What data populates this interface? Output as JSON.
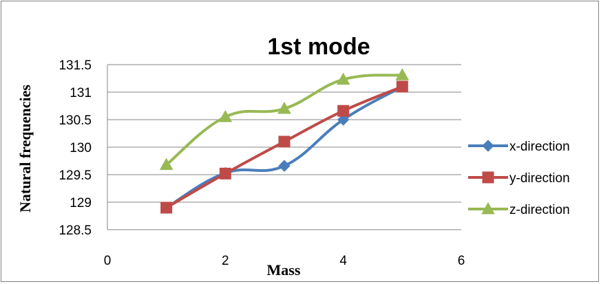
{
  "chart_data": {
    "type": "scatter",
    "title": "1st mode",
    "xlabel": "Mass",
    "ylabel": "Natural frequencies",
    "xlim": [
      0,
      6
    ],
    "ylim": [
      128.5,
      131.5
    ],
    "xticks": [
      "0",
      "2",
      "4",
      "6"
    ],
    "yticks": [
      "128.5",
      "129",
      "129.5",
      "130",
      "130.5",
      "131",
      "131.5"
    ],
    "grid": "horizontal",
    "legend_position": "right",
    "line_style": "smoothed lines with markers",
    "series": [
      {
        "name": "x-direction",
        "color": "#4a7ebb",
        "marker": "diamond",
        "x": [
          1,
          2,
          3,
          4,
          5
        ],
        "y": [
          128.9,
          129.53,
          129.66,
          130.5,
          131.1
        ]
      },
      {
        "name": "y-direction",
        "color": "#be4b48",
        "marker": "square",
        "x": [
          1,
          2,
          3,
          4,
          5
        ],
        "y": [
          128.9,
          129.52,
          130.1,
          130.66,
          131.1
        ]
      },
      {
        "name": "z-direction",
        "color": "#98b954",
        "marker": "triangle",
        "x": [
          1,
          2,
          3,
          4,
          5
        ],
        "y": [
          129.68,
          130.55,
          130.7,
          131.23,
          131.31
        ]
      }
    ]
  }
}
